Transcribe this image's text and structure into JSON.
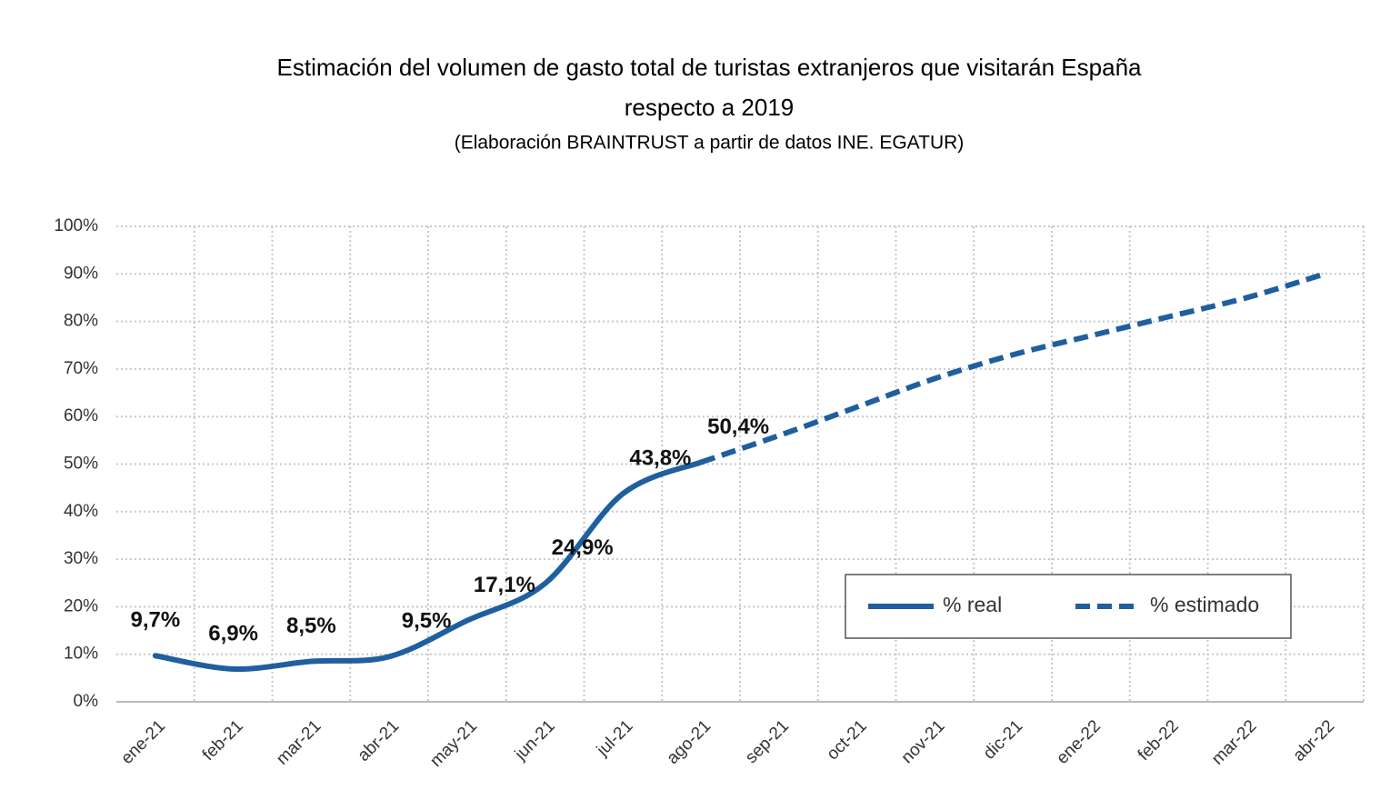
{
  "chart_data": {
    "type": "line",
    "title": [
      "Estimación del volumen de gasto total de turistas extranjeros que visitarán España",
      "respecto a 2019"
    ],
    "subtitle": "(Elaboración BRAINTRUST a partir de datos INE. EGATUR)",
    "categories": [
      "ene-21",
      "feb-21",
      "mar-21",
      "abr-21",
      "may-21",
      "jun-21",
      "jul-21",
      "ago-21",
      "sep-21",
      "oct-21",
      "nov-21",
      "dic-21",
      "ene-22",
      "feb-22",
      "mar-22",
      "abr-22"
    ],
    "series": [
      {
        "name": "% real",
        "color": "#1f5f9f",
        "dashed": false,
        "values": [
          9.7,
          6.9,
          8.5,
          9.5,
          17.1,
          24.9,
          43.8,
          50.4,
          null,
          null,
          null,
          null,
          null,
          null,
          null,
          null
        ],
        "value_labels": [
          "9,7%",
          "6,9%",
          "8,5%",
          "9,5%",
          "17,1%",
          "24,9%",
          "43,8%",
          "50,4%",
          null,
          null,
          null,
          null,
          null,
          null,
          null,
          null
        ]
      },
      {
        "name": "% estimado",
        "color": "#1f5f9f",
        "dashed": true,
        "values": [
          null,
          null,
          null,
          null,
          null,
          null,
          null,
          50.4,
          56,
          62,
          68,
          73,
          77,
          81,
          85,
          90
        ]
      }
    ],
    "ylim": [
      0,
      100
    ],
    "yticks": [
      {
        "value": 0,
        "label": "0%"
      },
      {
        "value": 10,
        "label": "10%"
      },
      {
        "value": 20,
        "label": "20%"
      },
      {
        "value": 30,
        "label": "30%"
      },
      {
        "value": 40,
        "label": "40%"
      },
      {
        "value": 50,
        "label": "50%"
      },
      {
        "value": 60,
        "label": "60%"
      },
      {
        "value": 70,
        "label": "70%"
      },
      {
        "value": 80,
        "label": "80%"
      },
      {
        "value": 90,
        "label": "90%"
      },
      {
        "value": 100,
        "label": "100%"
      }
    ],
    "grid": true,
    "legend": "lower right"
  }
}
